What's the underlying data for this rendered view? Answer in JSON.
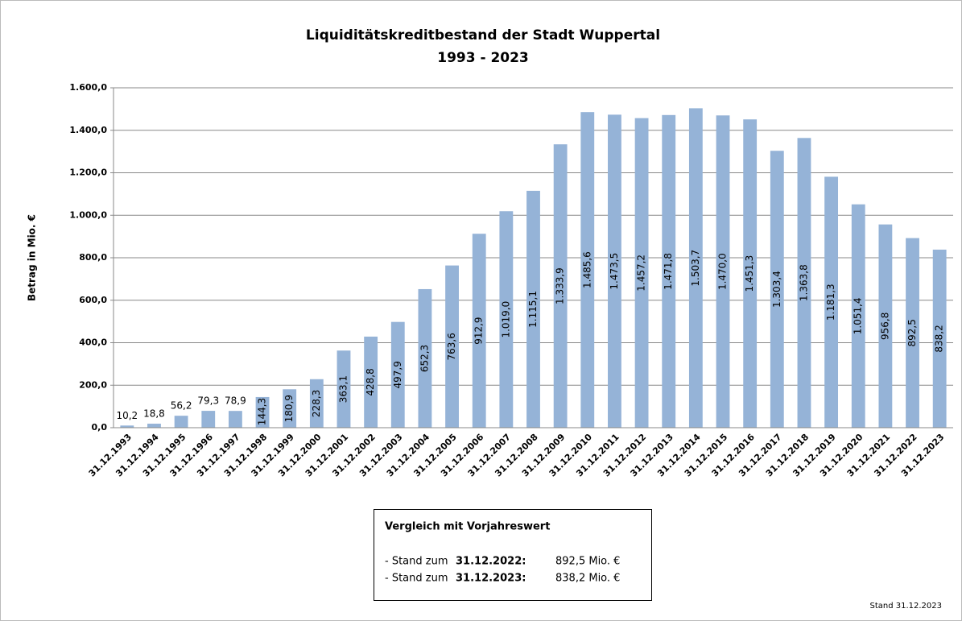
{
  "chart_data": {
    "type": "bar",
    "title": "Liquiditätskreditbestand der Stadt Wuppertal",
    "subtitle": "1993 - 2023",
    "y_label": "Betrag in Mio. €",
    "categories": [
      "31.12.1993",
      "31.12.1994",
      "31.12.1995",
      "31.12.1996",
      "31.12.1997",
      "31.12.1998",
      "31.12.1999",
      "31.12.2000",
      "31.12.2001",
      "31.12.2002",
      "31.12.2003",
      "31.12.2004",
      "31.12.2005",
      "31.12.2006",
      "31.12.2007",
      "31.12.2008",
      "31.12.2009",
      "31.12.2010",
      "31.12.2011",
      "31.12.2012",
      "31.12.2013",
      "31.12.2014",
      "31.12.2015",
      "31.12.2016",
      "31.12.2017",
      "31.12.2018",
      "31.12.2019",
      "31.12.2020",
      "31.12.2021",
      "31.12.2022",
      "31.12.2023"
    ],
    "values": [
      10.2,
      18.8,
      56.2,
      79.3,
      78.9,
      144.3,
      180.9,
      228.3,
      363.1,
      428.8,
      497.9,
      652.3,
      763.6,
      912.9,
      1019.0,
      1115.1,
      1333.9,
      1485.6,
      1473.5,
      1457.2,
      1471.8,
      1503.7,
      1470.0,
      1451.3,
      1303.4,
      1363.8,
      1181.3,
      1051.4,
      956.8,
      892.5,
      838.2
    ],
    "value_labels": [
      "10,2",
      "18,8",
      "56,2",
      "79,3",
      "78,9",
      "144,3",
      "180,9",
      "228,3",
      "363,1",
      "428,8",
      "497,9",
      "652,3",
      "763,6",
      "912,9",
      "1.019,0",
      "1.115,1",
      "1.333,9",
      "1.485,6",
      "1.473,5",
      "1.457,2",
      "1.471,8",
      "1.503,7",
      "1.470,0",
      "1.451,3",
      "1.303,4",
      "1.363,8",
      "1.181,3",
      "1.051,4",
      "956,8",
      "892,5",
      "838,2"
    ],
    "color": "#95b3d7",
    "ylim": [
      0,
      1600
    ],
    "yticks": [
      {
        "value": 0,
        "label": "0,0"
      },
      {
        "value": 200,
        "label": "200,0"
      },
      {
        "value": 400,
        "label": "400,0"
      },
      {
        "value": 600,
        "label": "600,0"
      },
      {
        "value": 800,
        "label": "800,0"
      },
      {
        "value": 1000,
        "label": "1.000,0"
      },
      {
        "value": 1200,
        "label": "1.200,0"
      },
      {
        "value": 1400,
        "label": "1.400,0"
      },
      {
        "value": 1600,
        "label": "1.600,0"
      }
    ],
    "grid": true
  },
  "comparison": {
    "title": "Vergleich mit Vorjahreswert",
    "rows": [
      {
        "prefix": "- Stand zum",
        "date": "31.12.2022:",
        "value": "892,5 Mio. €"
      },
      {
        "prefix": "- Stand zum",
        "date": "31.12.2023:",
        "value": "838,2 Mio. €"
      }
    ]
  },
  "footer": "Stand  31.12.2023"
}
